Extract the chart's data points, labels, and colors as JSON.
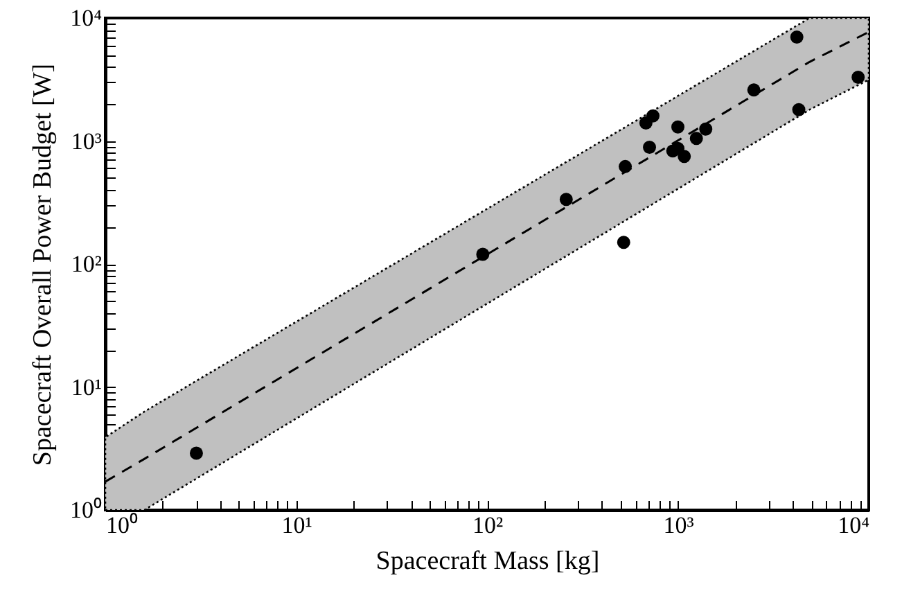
{
  "chart_data": {
    "type": "scatter",
    "xlabel": "Spacecraft Mass [kg]",
    "ylabel": "Spacecraft Overall Power Budget [W]",
    "log": "xy",
    "grid": false,
    "xlim": [
      1,
      10000
    ],
    "ylim": [
      1,
      10000
    ],
    "xticks": [
      {
        "value": 1,
        "label": "10⁰"
      },
      {
        "value": 2,
        "label": null
      },
      {
        "value": 3,
        "label": null
      },
      {
        "value": 4,
        "label": null
      },
      {
        "value": 5,
        "label": null
      },
      {
        "value": 6,
        "label": null
      },
      {
        "value": 7,
        "label": null
      },
      {
        "value": 8,
        "label": null
      },
      {
        "value": 9,
        "label": null
      },
      {
        "value": 10,
        "label": "10¹"
      },
      {
        "value": 20,
        "label": null
      },
      {
        "value": 30,
        "label": null
      },
      {
        "value": 40,
        "label": null
      },
      {
        "value": 50,
        "label": null
      },
      {
        "value": 60,
        "label": null
      },
      {
        "value": 70,
        "label": null
      },
      {
        "value": 80,
        "label": null
      },
      {
        "value": 90,
        "label": null
      },
      {
        "value": 100,
        "label": "10²"
      },
      {
        "value": 200,
        "label": null
      },
      {
        "value": 300,
        "label": null
      },
      {
        "value": 400,
        "label": null
      },
      {
        "value": 500,
        "label": null
      },
      {
        "value": 600,
        "label": null
      },
      {
        "value": 700,
        "label": null
      },
      {
        "value": 800,
        "label": null
      },
      {
        "value": 900,
        "label": null
      },
      {
        "value": 1000,
        "label": "10³"
      },
      {
        "value": 2000,
        "label": null
      },
      {
        "value": 3000,
        "label": null
      },
      {
        "value": 4000,
        "label": null
      },
      {
        "value": 5000,
        "label": null
      },
      {
        "value": 6000,
        "label": null
      },
      {
        "value": 7000,
        "label": null
      },
      {
        "value": 8000,
        "label": null
      },
      {
        "value": 9000,
        "label": null
      },
      {
        "value": 10000,
        "label": "10⁴"
      }
    ],
    "yticks": [
      {
        "value": 1,
        "label": "10⁰"
      },
      {
        "value": 2,
        "label": null
      },
      {
        "value": 3,
        "label": null
      },
      {
        "value": 4,
        "label": null
      },
      {
        "value": 5,
        "label": null
      },
      {
        "value": 6,
        "label": null
      },
      {
        "value": 7,
        "label": null
      },
      {
        "value": 8,
        "label": null
      },
      {
        "value": 9,
        "label": null
      },
      {
        "value": 10,
        "label": "10¹"
      },
      {
        "value": 20,
        "label": null
      },
      {
        "value": 30,
        "label": null
      },
      {
        "value": 40,
        "label": null
      },
      {
        "value": 50,
        "label": null
      },
      {
        "value": 60,
        "label": null
      },
      {
        "value": 70,
        "label": null
      },
      {
        "value": 80,
        "label": null
      },
      {
        "value": 90,
        "label": null
      },
      {
        "value": 100,
        "label": "10²"
      },
      {
        "value": 200,
        "label": null
      },
      {
        "value": 300,
        "label": null
      },
      {
        "value": 400,
        "label": null
      },
      {
        "value": 500,
        "label": null
      },
      {
        "value": 600,
        "label": null
      },
      {
        "value": 700,
        "label": null
      },
      {
        "value": 800,
        "label": null
      },
      {
        "value": 900,
        "label": null
      },
      {
        "value": 1000,
        "label": "10³"
      },
      {
        "value": 2000,
        "label": null
      },
      {
        "value": 3000,
        "label": null
      },
      {
        "value": 4000,
        "label": null
      },
      {
        "value": 5000,
        "label": null
      },
      {
        "value": 6000,
        "label": null
      },
      {
        "value": 7000,
        "label": null
      },
      {
        "value": 8000,
        "label": null
      },
      {
        "value": 9000,
        "label": null
      },
      {
        "value": 10000,
        "label": "10⁴"
      }
    ],
    "series": [
      {
        "type": "line",
        "color": "#000000",
        "line_style": "dashed",
        "marker": "none",
        "x": [
          1,
          1.6,
          4900,
          10000
        ],
        "values": [
          1.7,
          2.6,
          4400,
          7700
        ],
        "lower": [
          1,
          1,
          1800,
          3150
        ],
        "upper": [
          3.9,
          6.3,
          10000,
          10000
        ]
      },
      {
        "color": "#000000",
        "marker": "circle",
        "x": [
          3,
          95,
          260,
          520,
          530,
          680,
          740,
          710,
          940,
          1000,
          1080,
          1000,
          1250,
          1400,
          2500,
          4200,
          4300,
          8800
        ],
        "values": [
          2.9,
          120,
          335,
          150,
          620,
          1400,
          1600,
          890,
          830,
          870,
          750,
          1300,
          1050,
          1250,
          2600,
          7000,
          1800,
          3300
        ]
      }
    ]
  }
}
